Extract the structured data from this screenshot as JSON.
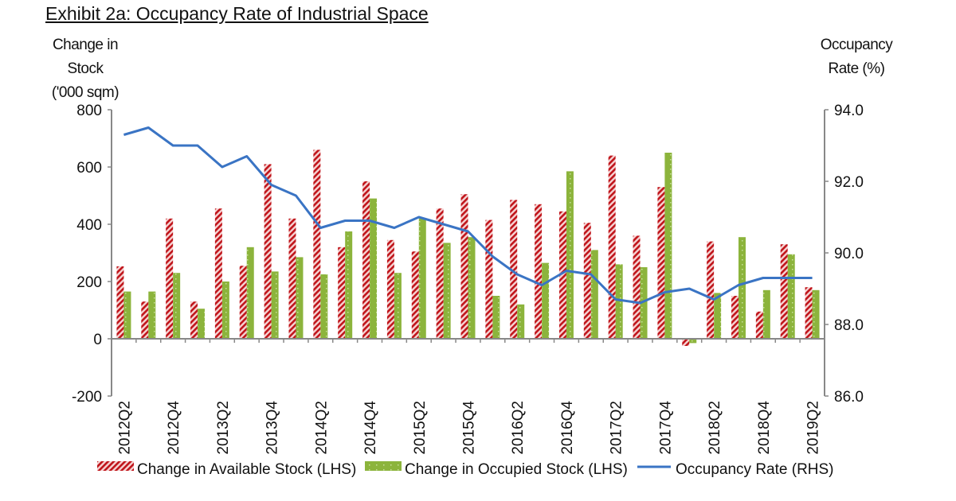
{
  "title": "Exhibit 2a: Occupancy Rate of Industrial Space",
  "chart_data": {
    "type": "bar+line",
    "title": "Exhibit 2a: Occupancy Rate of Industrial Space",
    "ylabel_left": "Change in Stock ('000 sqm)",
    "ylabel_left_lines": [
      "Change in",
      "Stock",
      "('000 sqm)"
    ],
    "ylabel_right": "Occupancy Rate (%)",
    "ylabel_right_lines": [
      "Occupancy",
      "Rate (%)"
    ],
    "ylim_left": [
      -200,
      800
    ],
    "yticks_left": [
      "800",
      "600",
      "400",
      "200",
      "0",
      "-200"
    ],
    "ylim_right": [
      86,
      94
    ],
    "yticks_right": [
      "94.0",
      "92.0",
      "90.0",
      "88.0",
      "86.0"
    ],
    "grid": false,
    "legend_position": "bottom",
    "categories": [
      "2012Q2",
      "2012Q3",
      "2012Q4",
      "2013Q1",
      "2013Q2",
      "2013Q3",
      "2013Q4",
      "2014Q1",
      "2014Q2",
      "2014Q3",
      "2014Q4",
      "2015Q1",
      "2015Q2",
      "2015Q3",
      "2015Q4",
      "2016Q1",
      "2016Q2",
      "2016Q3",
      "2016Q4",
      "2017Q1",
      "2017Q2",
      "2017Q3",
      "2017Q4",
      "2018Q1",
      "2018Q2",
      "2018Q3",
      "2018Q4",
      "2019Q1",
      "2019Q2"
    ],
    "xtick_labels": [
      "2012Q2",
      "2012Q4",
      "2013Q2",
      "2013Q4",
      "2014Q2",
      "2014Q4",
      "2015Q2",
      "2015Q4",
      "2016Q2",
      "2016Q4",
      "2017Q2",
      "2017Q4",
      "2018Q2",
      "2018Q4",
      "2019Q2"
    ],
    "series": [
      {
        "name": "Change in Available Stock (LHS)",
        "type": "bar",
        "axis": "left",
        "color": "#c0151b",
        "values": [
          253,
          130,
          420,
          130,
          455,
          255,
          610,
          420,
          660,
          320,
          550,
          345,
          305,
          455,
          505,
          415,
          485,
          470,
          445,
          405,
          640,
          360,
          530,
          -25,
          340,
          150,
          95,
          330,
          180
        ]
      },
      {
        "name": "Change in Occupied Stock (LHS)",
        "type": "bar",
        "axis": "left",
        "color": "#8cb43c",
        "values": [
          165,
          165,
          230,
          105,
          200,
          320,
          235,
          285,
          225,
          375,
          490,
          230,
          420,
          335,
          355,
          150,
          120,
          265,
          585,
          310,
          260,
          250,
          650,
          -15,
          160,
          355,
          170,
          295,
          170
        ]
      },
      {
        "name": "Occupancy Rate (RHS)",
        "type": "line",
        "axis": "right",
        "color": "#3a74c4",
        "values": [
          93.3,
          93.5,
          93.0,
          93.0,
          92.4,
          92.7,
          91.9,
          91.6,
          90.7,
          90.9,
          90.9,
          90.7,
          91.0,
          90.8,
          90.6,
          89.9,
          89.4,
          89.1,
          89.5,
          89.4,
          88.7,
          88.6,
          88.9,
          89.0,
          88.7,
          89.1,
          89.3,
          89.3,
          89.3
        ]
      }
    ]
  }
}
